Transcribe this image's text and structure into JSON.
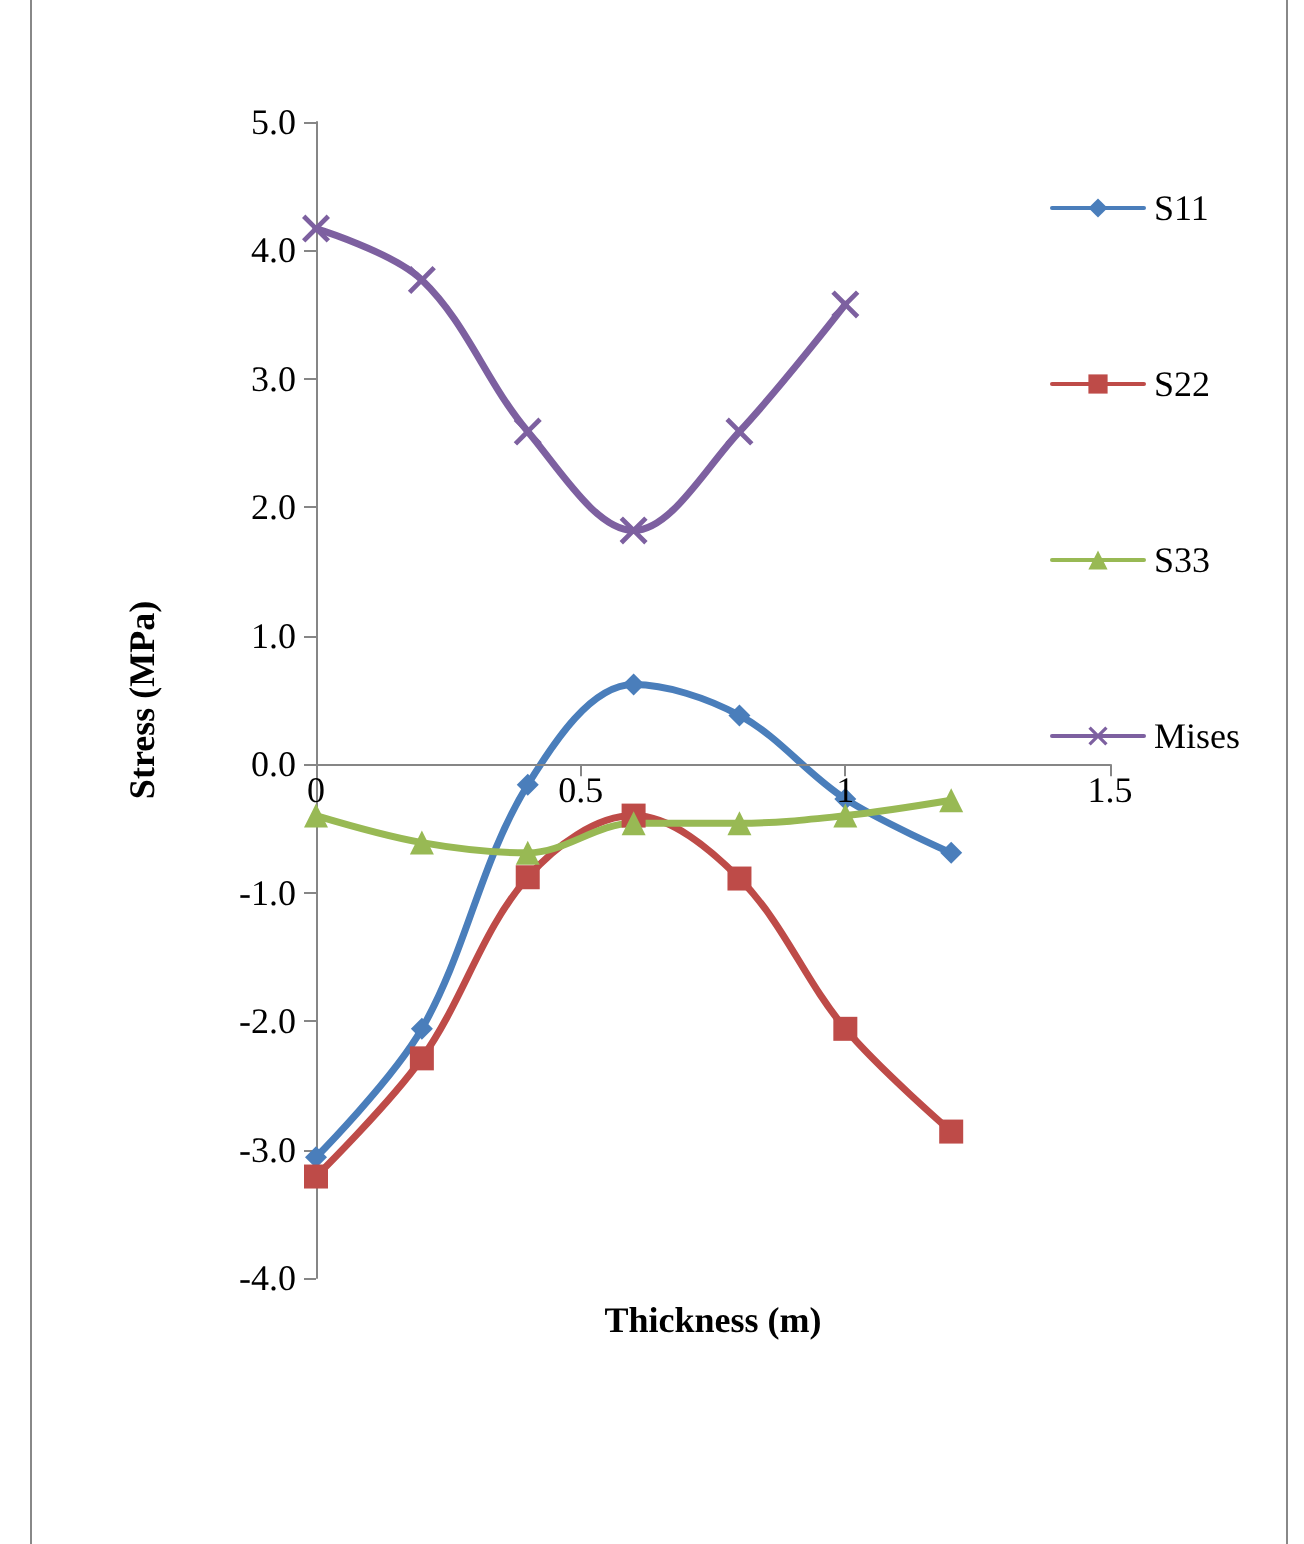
{
  "chart_data": {
    "type": "line",
    "xlabel": "Thickness (m)",
    "ylabel": "Stress (MPa)",
    "x": [
      0,
      0.2,
      0.4,
      0.6,
      0.8,
      1.0,
      1.2
    ],
    "series": [
      {
        "name": "S11",
        "color": "#4a7ebb",
        "marker": "diamond",
        "values": [
          -3.06,
          -2.06,
          -0.16,
          0.62,
          0.38,
          -0.27,
          -0.69
        ]
      },
      {
        "name": "S22",
        "color": "#be4b48",
        "marker": "square",
        "values": [
          -3.21,
          -2.29,
          -0.88,
          -0.4,
          -0.89,
          -2.06,
          -2.86
        ]
      },
      {
        "name": "S33",
        "color": "#98b954",
        "marker": "triangle",
        "values": [
          -0.4,
          -0.61,
          -0.69,
          -0.46,
          -0.46,
          -0.4,
          -0.28
        ]
      },
      {
        "name": "Mises",
        "color": "#7d60a0",
        "marker": "cross",
        "x": [
          0,
          0.2,
          0.4,
          0.6,
          0.8,
          1.0
        ],
        "values": [
          4.17,
          3.77,
          2.59,
          1.82,
          2.59,
          3.58
        ]
      }
    ],
    "xlim": [
      0,
      1.5
    ],
    "xticks": [
      0,
      0.5,
      1,
      1.5
    ],
    "ylim": [
      -4,
      5
    ],
    "yticks": [
      {
        "value": -4,
        "label": "-4.0"
      },
      {
        "value": -3,
        "label": "-3.0"
      },
      {
        "value": -2,
        "label": "-2.0"
      },
      {
        "value": -1,
        "label": "-1.0"
      },
      {
        "value": 0,
        "label": "0.0"
      },
      {
        "value": 1,
        "label": "1.0"
      },
      {
        "value": 2,
        "label": "2.0"
      },
      {
        "value": 3,
        "label": "3.0"
      },
      {
        "value": 4,
        "label": "4.0"
      },
      {
        "value": 5,
        "label": "5.0"
      }
    ],
    "grid": false,
    "legend": "right"
  }
}
